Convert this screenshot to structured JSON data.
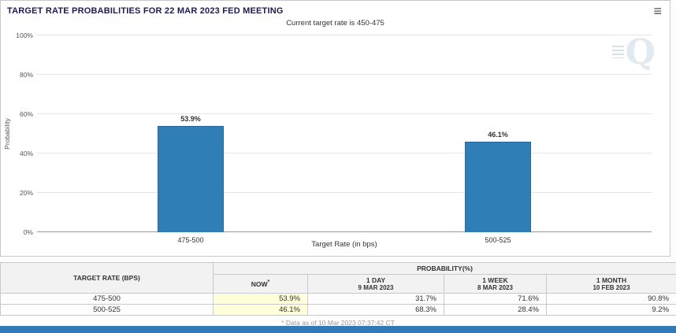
{
  "header": {
    "title": "TARGET RATE PROBABILITIES FOR 22 MAR 2023 FED MEETING"
  },
  "icons": {
    "menu": "≡",
    "watermark": "Q"
  },
  "chart_data": {
    "type": "bar",
    "subtitle": "Current target rate is 450-475",
    "categories": [
      "475-500",
      "500-525"
    ],
    "values": [
      53.9,
      46.1
    ],
    "value_labels": [
      "53.9%",
      "46.1%"
    ],
    "xlabel": "Target Rate (in bps)",
    "ylabel": "Probability",
    "ylim": [
      0,
      100
    ],
    "yticks": [
      0,
      20,
      40,
      60,
      80,
      100
    ],
    "ytick_suffix": "%",
    "grid": true,
    "legend": false,
    "bar_color": "#2f7eb6"
  },
  "table": {
    "corner_header": "TARGET RATE (BPS)",
    "group_header": "PROBABILITY(%)",
    "columns": [
      {
        "line1": "NOW",
        "sup": "*",
        "line2": ""
      },
      {
        "line1": "1 DAY",
        "sup": "",
        "line2": "9 MAR 2023"
      },
      {
        "line1": "1 WEEK",
        "sup": "",
        "line2": "8 MAR 2023"
      },
      {
        "line1": "1 MONTH",
        "sup": "",
        "line2": "10 FEB 2023"
      }
    ],
    "rows": [
      {
        "rate": "475-500",
        "values": [
          "53.9%",
          "31.7%",
          "71.6%",
          "90.8%"
        ]
      },
      {
        "rate": "500-525",
        "values": [
          "46.1%",
          "68.3%",
          "28.4%",
          "9.2%"
        ]
      }
    ],
    "footnote": "* Data as of 10 Mar 2023 07:37:42 CT"
  },
  "colors": {
    "bar": "#2f7eb6",
    "now_column_highlight": "#ffffd9",
    "bottom_bar": "#3279b7",
    "title_text": "#1b1b4f"
  }
}
